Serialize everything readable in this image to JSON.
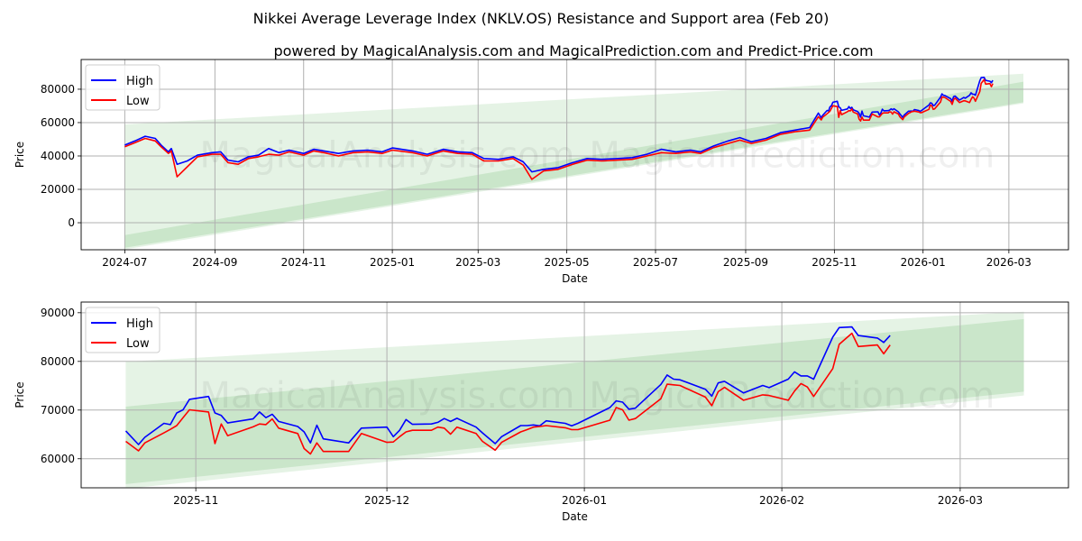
{
  "title": "Nikkei Average Leverage Index (NKLV.OS) Resistance and Support area (Feb 20)",
  "subtitle": "powered by MagicalAnalysis.com and MagicalPrediction.com and Predict-Price.com",
  "watermark": [
    "MagicalAnalysis.com",
    "MagicalPrediction.com"
  ],
  "colors": {
    "high": "#0000ff",
    "low": "#ff0000",
    "band_light": "#d5ebd5",
    "band_dark": "#b6dcb6",
    "grid": "#b0b0b0"
  },
  "chart_data": [
    {
      "type": "line",
      "xlabel": "Date",
      "ylabel": "Price",
      "xlim": [
        "2024-06-01",
        "2026-04-11"
      ],
      "ylim": [
        -16200,
        97800
      ],
      "grid": true,
      "legend": {
        "position": "top-left",
        "entries": [
          "High",
          "Low"
        ]
      },
      "xticks": [
        "2024-07",
        "2024-09",
        "2024-11",
        "2025-01",
        "2025-03",
        "2025-05",
        "2025-07",
        "2025-09",
        "2025-11",
        "2026-01",
        "2026-03"
      ],
      "yticks": [
        0,
        20000,
        40000,
        60000,
        80000
      ],
      "includes_recent_series_from_chart": 1,
      "bands": [
        {
          "name": "resistance-support-outer",
          "start": "2024-07-01",
          "end": "2026-03-11",
          "upper": [
            58900,
            89300
          ],
          "lower": [
            -16000,
            71500
          ]
        },
        {
          "name": "resistance-support-inner",
          "start": "2024-07-01",
          "end": "2026-03-11",
          "upper": [
            -7400,
            84500
          ],
          "lower": [
            -15000,
            72200
          ]
        }
      ],
      "series": {
        "dates": [
          "2024-07-01",
          "2024-07-08",
          "2024-07-15",
          "2024-07-22",
          "2024-07-26",
          "2024-07-31",
          "2024-08-02",
          "2024-08-06",
          "2024-08-13",
          "2024-08-20",
          "2024-08-30",
          "2024-09-05",
          "2024-09-10",
          "2024-09-17",
          "2024-09-24",
          "2024-10-01",
          "2024-10-08",
          "2024-10-15",
          "2024-10-22",
          "2024-11-01",
          "2024-11-08",
          "2024-11-15",
          "2024-11-25",
          "2024-12-05",
          "2024-12-15",
          "2024-12-25",
          "2025-01-01",
          "2025-01-15",
          "2025-01-25",
          "2025-02-05",
          "2025-02-15",
          "2025-02-25",
          "2025-03-05",
          "2025-03-15",
          "2025-03-25",
          "2025-04-01",
          "2025-04-07",
          "2025-04-15",
          "2025-04-25",
          "2025-05-05",
          "2025-05-15",
          "2025-05-25",
          "2025-06-05",
          "2025-06-15",
          "2025-06-25",
          "2025-07-05",
          "2025-07-15",
          "2025-07-25",
          "2025-08-01",
          "2025-08-10",
          "2025-08-20",
          "2025-08-28",
          "2025-09-05",
          "2025-09-15",
          "2025-09-25",
          "2025-10-05",
          "2025-10-15"
        ],
        "high": [
          46500,
          49000,
          51800,
          50500,
          46500,
          42500,
          44500,
          35000,
          37000,
          40500,
          42000,
          42500,
          37500,
          36500,
          39500,
          40500,
          44500,
          42000,
          43500,
          41500,
          44000,
          43000,
          41500,
          43000,
          43500,
          42500,
          44800,
          43000,
          41000,
          44000,
          42500,
          42000,
          38500,
          38000,
          39500,
          36500,
          30500,
          32000,
          33000,
          36000,
          38500,
          38000,
          38500,
          39000,
          41000,
          44000,
          42500,
          43500,
          42500,
          46000,
          49000,
          51000,
          48500,
          50500,
          54000,
          55500,
          57000
        ],
        "low": [
          45500,
          48000,
          50500,
          49000,
          45500,
          41500,
          43000,
          27500,
          33500,
          39500,
          41000,
          41000,
          36000,
          35000,
          38500,
          39500,
          41000,
          40500,
          42500,
          40500,
          43000,
          42000,
          40000,
          42000,
          42500,
          41500,
          43500,
          42000,
          40000,
          43000,
          41500,
          41000,
          37000,
          37000,
          38500,
          34500,
          26000,
          31000,
          32000,
          35000,
          37500,
          37000,
          37500,
          38000,
          40000,
          42000,
          41500,
          42500,
          41500,
          45000,
          47500,
          49500,
          47500,
          49500,
          53000,
          54500,
          55500
        ]
      }
    },
    {
      "type": "line",
      "xlabel": "Date",
      "ylabel": "Price",
      "xlim": [
        "2025-10-14",
        "2026-03-18"
      ],
      "ylim": [
        54030,
        92190
      ],
      "grid": true,
      "legend": {
        "position": "top-left",
        "entries": [
          "High",
          "Low"
        ]
      },
      "xticks": [
        "2025-11",
        "2025-12",
        "2026-01",
        "2026-02",
        "2026-03"
      ],
      "yticks": [
        60000,
        70000,
        80000,
        90000
      ],
      "bands": [
        {
          "name": "resistance-support-outer",
          "start": "2025-10-21",
          "end": "2026-03-11",
          "upper": [
            79930,
            90200
          ],
          "lower": [
            53830,
            72990
          ]
        },
        {
          "name": "resistance-support-inner",
          "start": "2025-10-21",
          "end": "2026-03-11",
          "upper": [
            70700,
            88700
          ],
          "lower": [
            54800,
            73770
          ]
        }
      ],
      "series": {
        "dates": [
          "2025-10-21",
          "2025-10-23",
          "2025-10-24",
          "2025-10-27",
          "2025-10-28",
          "2025-10-29",
          "2025-10-30",
          "2025-10-31",
          "2025-11-03",
          "2025-11-04",
          "2025-11-05",
          "2025-11-06",
          "2025-11-10",
          "2025-11-11",
          "2025-11-12",
          "2025-11-13",
          "2025-11-14",
          "2025-11-17",
          "2025-11-18",
          "2025-11-19",
          "2025-11-20",
          "2025-11-21",
          "2025-11-25",
          "2025-11-27",
          "2025-12-01",
          "2025-12-02",
          "2025-12-03",
          "2025-12-04",
          "2025-12-05",
          "2025-12-08",
          "2025-12-09",
          "2025-12-10",
          "2025-12-11",
          "2025-12-12",
          "2025-12-15",
          "2025-12-16",
          "2025-12-18",
          "2025-12-19",
          "2025-12-22",
          "2025-12-23",
          "2025-12-24",
          "2025-12-25",
          "2025-12-26",
          "2025-12-29",
          "2025-12-30",
          "2025-12-31",
          "2026-01-05",
          "2026-01-06",
          "2026-01-07",
          "2026-01-08",
          "2026-01-09",
          "2026-01-13",
          "2026-01-14",
          "2026-01-15",
          "2026-01-16",
          "2026-01-20",
          "2026-01-21",
          "2026-01-22",
          "2026-01-23",
          "2026-01-26",
          "2026-01-29",
          "2026-01-30",
          "2026-02-02",
          "2026-02-03",
          "2026-02-04",
          "2026-02-05",
          "2026-02-06",
          "2026-02-09",
          "2026-02-10",
          "2026-02-12",
          "2026-02-13",
          "2026-02-16",
          "2026-02-17",
          "2026-02-18"
        ],
        "high": [
          65710,
          62920,
          64410,
          67270,
          67010,
          69410,
          70060,
          72210,
          72790,
          69410,
          68890,
          67340,
          68180,
          69610,
          68440,
          69150,
          67660,
          66620,
          65520,
          63250,
          66880,
          64090,
          63250,
          66300,
          66490,
          64540,
          65840,
          68050,
          67080,
          67140,
          67470,
          68250,
          67660,
          68310,
          66490,
          65320,
          63110,
          64540,
          66820,
          66820,
          66950,
          66750,
          67790,
          67270,
          66750,
          67270,
          70520,
          71880,
          71620,
          70190,
          70390,
          75260,
          77210,
          76360,
          76230,
          74280,
          72860,
          75580,
          75910,
          73510,
          75060,
          74610,
          76360,
          77860,
          77010,
          77010,
          76360,
          85000,
          86950,
          87080,
          85320,
          84800,
          83900,
          85320
        ],
        "low": [
          63570,
          61620,
          63250,
          65320,
          66040,
          66820,
          68440,
          70060,
          69610,
          63110,
          67140,
          64740,
          66560,
          67140,
          67010,
          68180,
          66300,
          65190,
          62080,
          60970,
          63250,
          61490,
          61490,
          65190,
          63370,
          63440,
          64540,
          65520,
          65840,
          65840,
          66490,
          66300,
          65060,
          66490,
          65190,
          63570,
          61750,
          63370,
          65520,
          65970,
          66490,
          66620,
          66820,
          66360,
          65970,
          65970,
          67920,
          70520,
          70060,
          67920,
          68250,
          72340,
          75320,
          75190,
          75060,
          72660,
          70910,
          73770,
          74670,
          72010,
          73120,
          72990,
          72010,
          73900,
          75450,
          74740,
          72790,
          78510,
          83510,
          85780,
          83050,
          83380,
          81560,
          83380
        ]
      }
    }
  ]
}
